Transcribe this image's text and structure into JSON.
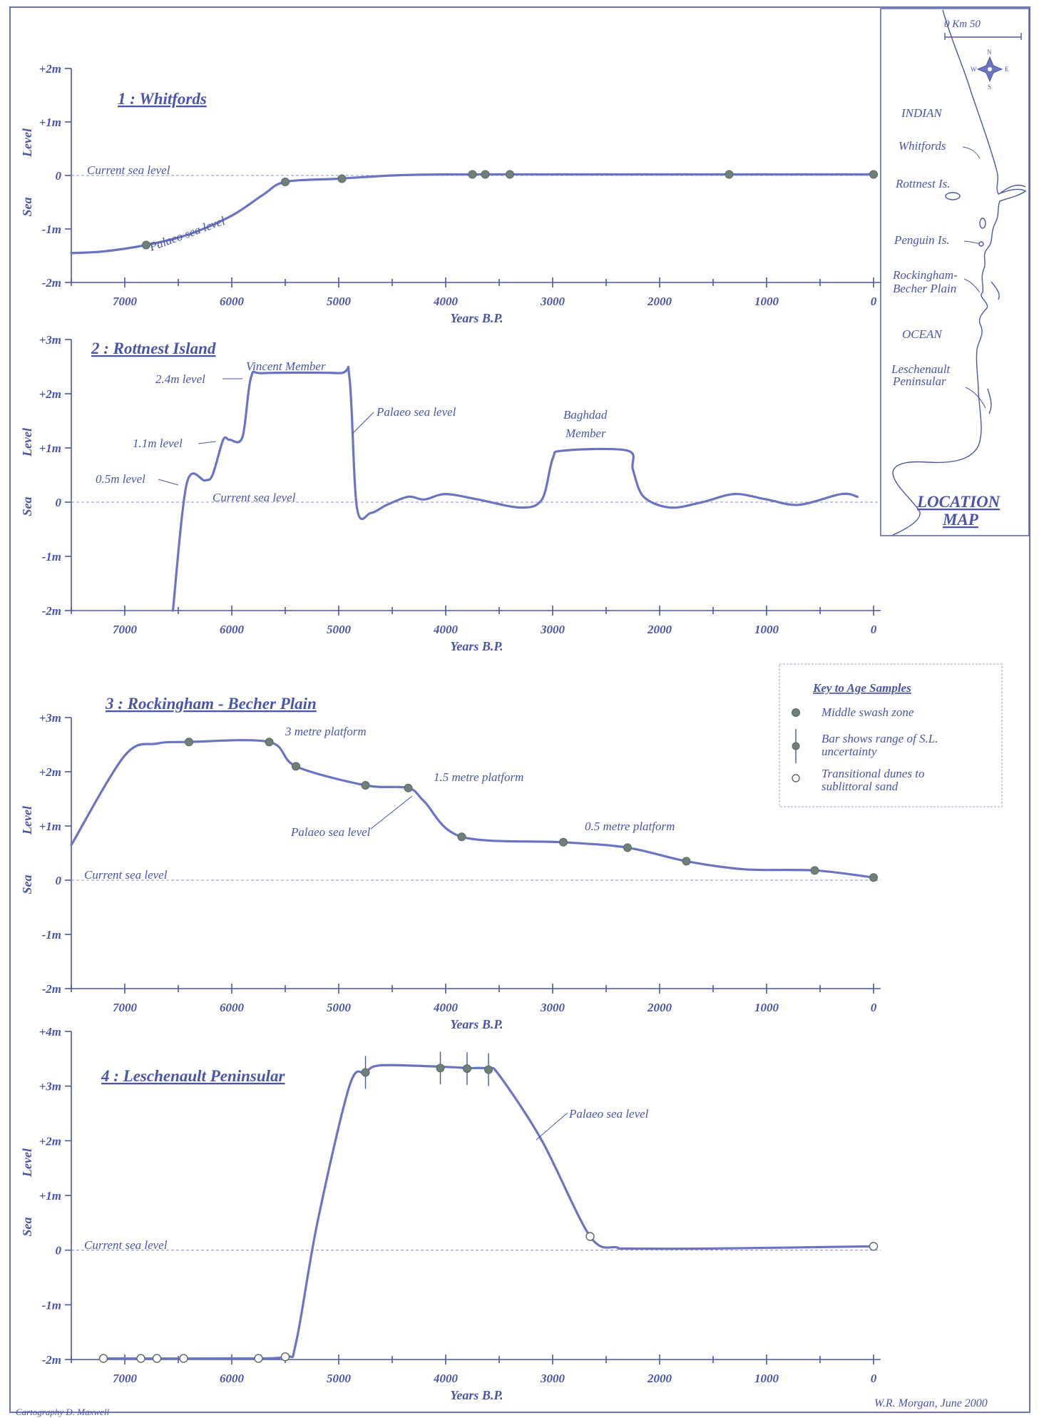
{
  "chart_data": [
    {
      "type": "line",
      "title": "1 : Whitfords",
      "ylabel": "Sea Level",
      "xlabel": "Years B.P.",
      "x_ticks": [
        "7000",
        "6000",
        "5000",
        "4000",
        "3000",
        "2000",
        "1000",
        "0"
      ],
      "y_ticks": [
        "+2m",
        "+1m",
        "0",
        "-1m",
        "-2m"
      ],
      "xlim": [
        7500,
        0
      ],
      "ylim": [
        -2,
        2
      ],
      "series": [
        {
          "name": "Palaeo sea level",
          "x": [
            7500,
            7200,
            6800,
            6400,
            6000,
            5700,
            5500,
            5000,
            4500,
            4000,
            3000,
            2000,
            1000,
            0
          ],
          "y": [
            -1.45,
            -1.42,
            -1.3,
            -1.1,
            -0.75,
            -0.35,
            -0.12,
            -0.06,
            0.0,
            0.02,
            0.02,
            0.02,
            0.02,
            0.02
          ]
        }
      ],
      "samples": [
        {
          "x": 6800,
          "y": -1.3,
          "kind": "middle"
        },
        {
          "x": 5500,
          "y": -0.12,
          "kind": "middle"
        },
        {
          "x": 4970,
          "y": -0.06,
          "kind": "middle"
        },
        {
          "x": 3750,
          "y": 0.02,
          "kind": "middle"
        },
        {
          "x": 3630,
          "y": 0.02,
          "kind": "middle"
        },
        {
          "x": 3400,
          "y": 0.02,
          "kind": "middle"
        },
        {
          "x": 1350,
          "y": 0.02,
          "kind": "middle"
        },
        {
          "x": 0,
          "y": 0.02,
          "kind": "middle"
        }
      ],
      "labels": {
        "current": "Current sea level",
        "palaeo": "Palaeo sea level"
      }
    },
    {
      "type": "line",
      "title": "2 : Rottnest Island",
      "ylabel": "Sea Level",
      "xlabel": "Years B.P.",
      "x_ticks": [
        "7000",
        "6000",
        "5000",
        "4000",
        "3000",
        "2000",
        "1000",
        "0"
      ],
      "y_ticks": [
        "+3m",
        "+2m",
        "+1m",
        "0",
        "-1m",
        "-2m"
      ],
      "xlim": [
        7500,
        0
      ],
      "ylim": [
        -2,
        3
      ],
      "series": [
        {
          "name": "Palaeo sea level",
          "x": [
            6550,
            6420,
            6250,
            6180,
            6080,
            6020,
            5900,
            5820,
            5700,
            5000,
            4900,
            4830,
            4700,
            4550,
            4350,
            4200,
            4000,
            3700,
            3300,
            3100,
            3000,
            2900,
            2300,
            2250,
            2150,
            1900,
            1600,
            1300,
            1000,
            700,
            300,
            150
          ],
          "y": [
            -2.0,
            0.35,
            0.4,
            0.5,
            1.15,
            1.15,
            1.2,
            2.3,
            2.38,
            2.38,
            2.3,
            -0.1,
            -0.2,
            -0.05,
            0.1,
            0.05,
            0.15,
            0.05,
            -0.1,
            0.05,
            0.8,
            0.95,
            0.95,
            0.6,
            0.1,
            -0.1,
            0.0,
            0.15,
            0.05,
            -0.05,
            0.15,
            0.1
          ]
        }
      ],
      "annotations": [
        "2.4m level",
        "1.1m level",
        "0.5m level",
        "Vincent Member",
        "Baghdad",
        "Member"
      ],
      "labels": {
        "current": "Current sea level",
        "palaeo": "Palaeo sea level"
      }
    },
    {
      "type": "line",
      "title": "3 : Rockingham - Becher Plain",
      "ylabel": "Sea Level",
      "xlabel": "Years B.P.",
      "x_ticks": [
        "7000",
        "6000",
        "5000",
        "4000",
        "3000",
        "2000",
        "1000",
        "0"
      ],
      "y_ticks": [
        "+3m",
        "+2m",
        "+1m",
        "0",
        "-1m",
        "-2m"
      ],
      "xlim": [
        7500,
        0
      ],
      "ylim": [
        -2,
        3
      ],
      "series": [
        {
          "name": "Palaeo sea level",
          "x": [
            7500,
            7000,
            6700,
            6400,
            5650,
            5400,
            4750,
            4350,
            4200,
            3850,
            2900,
            2300,
            1750,
            1200,
            550,
            0
          ],
          "y": [
            0.65,
            2.3,
            2.52,
            2.55,
            2.55,
            2.1,
            1.75,
            1.7,
            1.45,
            0.8,
            0.7,
            0.6,
            0.35,
            0.2,
            0.18,
            0.05
          ]
        }
      ],
      "samples": [
        {
          "x": 6400,
          "y": 2.55,
          "kind": "middle"
        },
        {
          "x": 5650,
          "y": 2.55,
          "kind": "middle"
        },
        {
          "x": 5400,
          "y": 2.1,
          "kind": "middle"
        },
        {
          "x": 4750,
          "y": 1.75,
          "kind": "middle"
        },
        {
          "x": 4350,
          "y": 1.7,
          "kind": "middle"
        },
        {
          "x": 3850,
          "y": 0.8,
          "kind": "middle"
        },
        {
          "x": 2900,
          "y": 0.7,
          "kind": "middle"
        },
        {
          "x": 2300,
          "y": 0.6,
          "kind": "middle"
        },
        {
          "x": 1750,
          "y": 0.35,
          "kind": "middle"
        },
        {
          "x": 550,
          "y": 0.18,
          "kind": "middle"
        },
        {
          "x": 0,
          "y": 0.05,
          "kind": "middle"
        }
      ],
      "annotations": [
        "3 metre platform",
        "1.5 metre platform",
        "0.5 metre platform"
      ],
      "labels": {
        "current": "Current sea level",
        "palaeo": "Palaeo sea level"
      }
    },
    {
      "type": "line",
      "title": "4 : Leschenault Peninsular",
      "ylabel": "Sea Level",
      "xlabel": "Years B.P.",
      "x_ticks": [
        "7000",
        "6000",
        "5000",
        "4000",
        "3000",
        "2000",
        "1000",
        "0"
      ],
      "y_ticks": [
        "+4m",
        "+3m",
        "+2m",
        "+1m",
        "0",
        "-1m",
        "-2m"
      ],
      "xlim": [
        7500,
        0
      ],
      "ylim": [
        -2,
        4
      ],
      "series": [
        {
          "name": "Palaeo sea level",
          "x": [
            7200,
            6000,
            5500,
            5400,
            5200,
            4900,
            4750,
            4600,
            4000,
            3800,
            3600,
            3500,
            3100,
            2650,
            2400,
            2300,
            1500,
            0
          ],
          "y": [
            -1.98,
            -1.98,
            -1.95,
            -1.7,
            0.5,
            3.0,
            3.25,
            3.38,
            3.35,
            3.33,
            3.32,
            3.2,
            2.0,
            0.25,
            0.05,
            0.03,
            0.03,
            0.07
          ]
        }
      ],
      "samples": [
        {
          "x": 7200,
          "y": -1.98,
          "kind": "dune"
        },
        {
          "x": 6850,
          "y": -1.98,
          "kind": "dune"
        },
        {
          "x": 6700,
          "y": -1.98,
          "kind": "dune"
        },
        {
          "x": 6450,
          "y": -1.98,
          "kind": "dune"
        },
        {
          "x": 5750,
          "y": -1.98,
          "kind": "dune"
        },
        {
          "x": 5500,
          "y": -1.95,
          "kind": "dune"
        },
        {
          "x": 4750,
          "y": 3.25,
          "kind": "bar",
          "err": 0.3
        },
        {
          "x": 4050,
          "y": 3.33,
          "kind": "bar",
          "err": 0.3
        },
        {
          "x": 3800,
          "y": 3.32,
          "kind": "bar",
          "err": 0.3
        },
        {
          "x": 3600,
          "y": 3.3,
          "kind": "bar",
          "err": 0.3
        },
        {
          "x": 2650,
          "y": 0.25,
          "kind": "dune"
        },
        {
          "x": 0,
          "y": 0.07,
          "kind": "dune"
        }
      ],
      "labels": {
        "current": "Current sea level",
        "palaeo": "Palaeo sea level"
      }
    }
  ],
  "key": {
    "title": "Key to Age Samples",
    "items": [
      {
        "lines": [
          "Middle swash zone"
        ]
      },
      {
        "lines": [
          "Bar shows range of S.L.",
          "uncertainty"
        ]
      },
      {
        "lines": [
          "Transitional dunes to",
          "sublittoral sand"
        ]
      }
    ]
  },
  "map": {
    "scale_label": "0   Km   50",
    "compass": [
      "N",
      "S",
      "E",
      "W"
    ],
    "labels": [
      "INDIAN",
      "Whitfords",
      "Rottnest Is.",
      "Penguin Is.",
      "Rockingham-",
      "Becher Plain",
      "OCEAN",
      "Leschenault",
      "Peninsular"
    ],
    "title_lines": [
      "LOCATION",
      "MAP"
    ]
  },
  "credits": {
    "left": "Cartography D. Maxwell",
    "right": "W.R. Morgan, June 2000"
  },
  "colors": {
    "line": "#6b74c2",
    "text": "#4a55a8",
    "marker": "#6f8078"
  }
}
